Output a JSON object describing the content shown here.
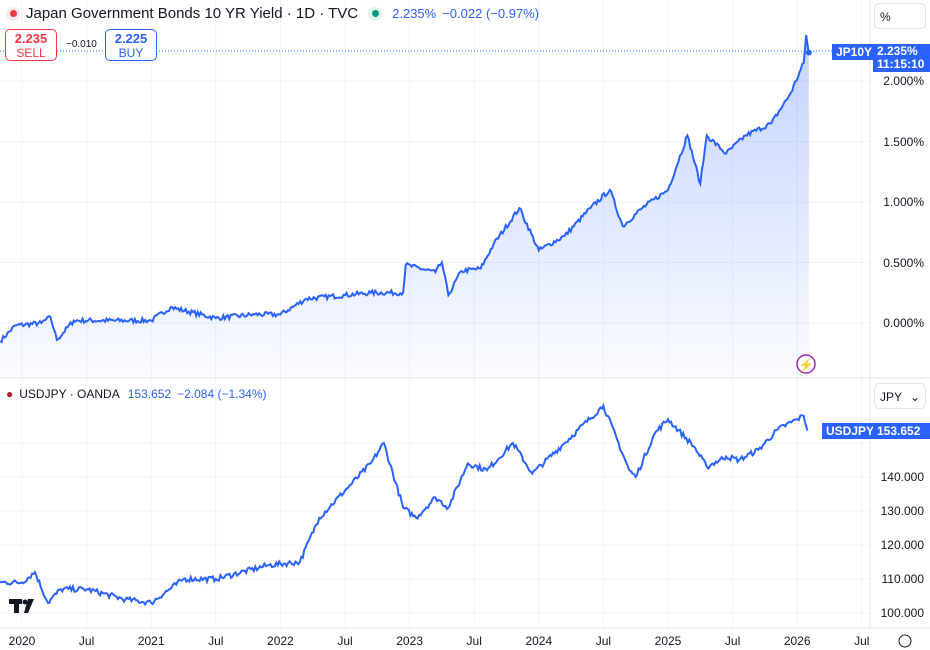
{
  "header": {
    "title": "Japan Government Bonds 10 YR Yield · 1D · TVC",
    "price": "2.235%",
    "change": "−0.022 (−0.97%)"
  },
  "trade": {
    "sell_price": "2.235",
    "sell_label": "SELL",
    "spread": "−0.010",
    "buy_price": "2.225",
    "buy_label": "BUY"
  },
  "pane2_header": {
    "title": "USDJPY · OANDA",
    "price": "153.652",
    "change": "−2.084 (−1.34%)"
  },
  "top_axis_unit": "%",
  "bottom_axis_unit": "JPY",
  "tags": {
    "jp_symbol": "JP10Y",
    "jp_price": "2.235%",
    "jp_countdown": "11:15:10",
    "usd_symbol": "USDJPY",
    "usd_price": "153.652"
  },
  "colors": {
    "line": "#2962ff",
    "down": "#f23645",
    "up": "#089981"
  },
  "chart_data": [
    {
      "type": "area",
      "title": "Japan Government Bonds 10 YR Yield",
      "ylabel": "%",
      "ylim": [
        -0.2,
        2.6
      ],
      "y_ticks": [
        "2.000%",
        "1.500%",
        "1.000%",
        "0.500%",
        "0.000%"
      ],
      "y_tick_values": [
        2,
        1.5,
        1,
        0.5,
        0
      ],
      "x": [
        2019.83,
        2019.95,
        2020.15,
        2020.22,
        2020.27,
        2020.4,
        2021.0,
        2021.15,
        2021.5,
        2021.8,
        2022.0,
        2022.2,
        2022.5,
        2022.7,
        2022.95,
        2022.97,
        2023.2,
        2023.25,
        2023.3,
        2023.4,
        2023.55,
        2023.65,
        2023.85,
        2024.0,
        2024.2,
        2024.4,
        2024.55,
        2024.65,
        2024.8,
        2025.0,
        2025.15,
        2025.25,
        2025.3,
        2025.45,
        2025.6,
        2025.8,
        2025.95,
        2026.05,
        2026.07,
        2026.09
      ],
      "values": [
        -0.15,
        -0.02,
        0.0,
        0.05,
        -0.14,
        0.02,
        0.02,
        0.13,
        0.04,
        0.07,
        0.07,
        0.2,
        0.23,
        0.25,
        0.25,
        0.48,
        0.42,
        0.5,
        0.23,
        0.43,
        0.45,
        0.65,
        0.95,
        0.6,
        0.72,
        0.95,
        1.1,
        0.8,
        0.95,
        1.1,
        1.55,
        1.15,
        1.55,
        1.4,
        1.55,
        1.65,
        1.9,
        2.15,
        2.38,
        2.235
      ]
    },
    {
      "type": "line",
      "title": "USDJPY",
      "ylabel": "JPY",
      "ylim": [
        96,
        164
      ],
      "y_ticks": [
        "150.000",
        "140.000",
        "130.000",
        "120.000",
        "110.000",
        "100.000"
      ],
      "y_tick_values": [
        150,
        140,
        130,
        120,
        110,
        100
      ],
      "x": [
        2019.83,
        2020.0,
        2020.1,
        2020.2,
        2020.3,
        2020.5,
        2020.8,
        2021.0,
        2021.25,
        2021.5,
        2021.9,
        2022.15,
        2022.3,
        2022.5,
        2022.7,
        2022.8,
        2022.95,
        2023.05,
        2023.2,
        2023.3,
        2023.45,
        2023.6,
        2023.8,
        2023.95,
        2024.2,
        2024.5,
        2024.7,
        2024.75,
        2024.9,
        2025.0,
        2025.2,
        2025.3,
        2025.45,
        2025.55,
        2025.7,
        2025.85,
        2026.0,
        2026.05,
        2026.08
      ],
      "values": [
        109,
        109,
        112,
        103,
        107,
        107,
        104,
        103,
        110,
        110,
        114,
        115,
        128,
        136,
        144,
        150,
        131,
        128,
        134,
        131,
        144,
        142,
        150,
        141,
        150,
        161,
        142,
        140,
        153,
        157,
        149,
        143,
        146,
        145,
        148,
        154,
        157,
        158,
        153.652
      ]
    }
  ],
  "time_axis": [
    "2020",
    "Jul",
    "2021",
    "Jul",
    "2022",
    "Jul",
    "2023",
    "Jul",
    "2024",
    "Jul",
    "2025",
    "Jul",
    "2026",
    "Jul"
  ]
}
